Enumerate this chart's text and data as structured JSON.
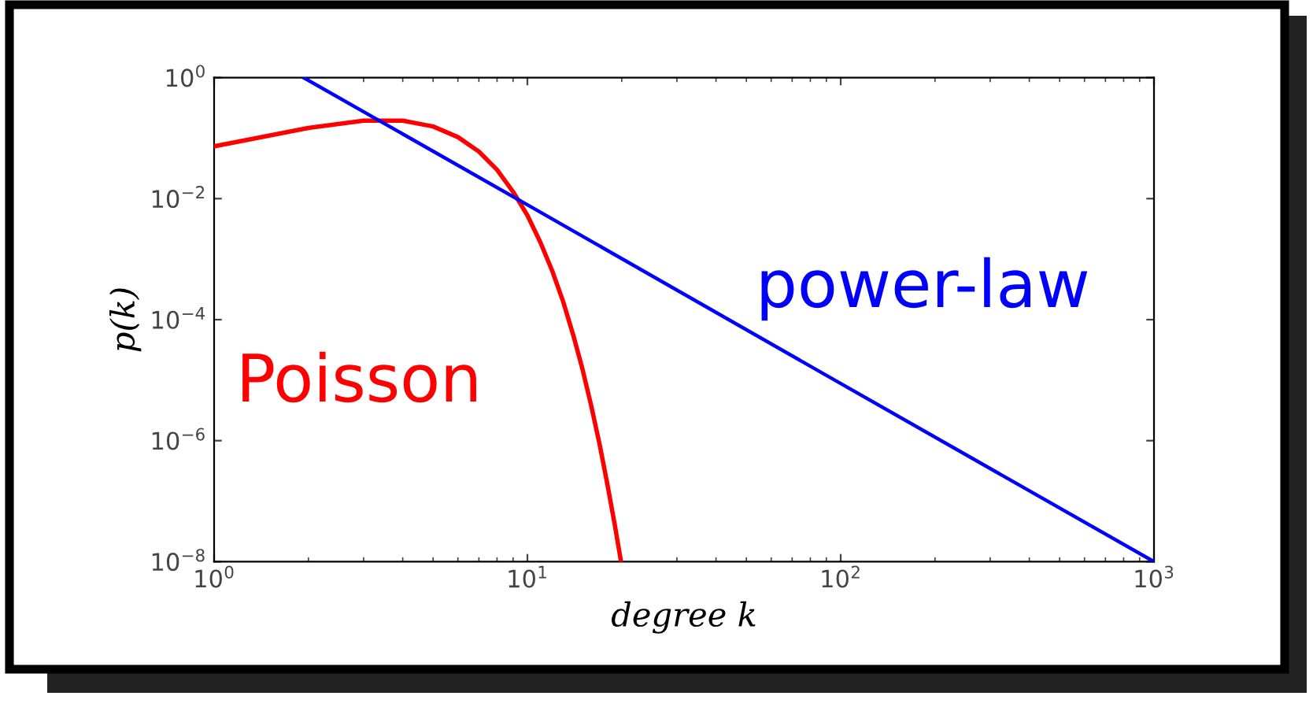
{
  "chart_data": {
    "type": "line",
    "xlabel": "degree k",
    "ylabel": "p(k)",
    "log": "xy",
    "xlim": [
      1,
      1000
    ],
    "ylim": [
      1e-08,
      1
    ],
    "xticks": [
      {
        "value": 1,
        "label": "10$^{0}$"
      },
      {
        "value": 10,
        "label": "10$^{1}$"
      },
      {
        "value": 100,
        "label": "10$^{2}$"
      },
      {
        "value": 1000,
        "label": "10$^{3}$"
      }
    ],
    "yticks": [
      {
        "value": 1e-08,
        "label": "10$^{−8}$"
      },
      {
        "value": 1e-06,
        "label": "10$^{−6}$"
      },
      {
        "value": 0.0001,
        "label": "10$^{−4}$"
      },
      {
        "value": 0.01,
        "label": "10$^{−2}$"
      },
      {
        "value": 1,
        "label": "10$^{0}$"
      }
    ],
    "grid": false,
    "legend": false,
    "marker": "none",
    "line_style": "solid",
    "series": [
      {
        "name": "Poisson",
        "color": "#ff0000",
        "x": [
          1,
          2,
          3,
          4,
          5,
          6,
          7,
          8,
          9,
          10,
          11,
          12,
          13,
          14,
          15,
          16,
          17,
          18,
          19,
          19.9
        ],
        "values": [
          0.073,
          0.147,
          0.195,
          0.195,
          0.156,
          0.104,
          0.06,
          0.03,
          0.013,
          0.0053,
          0.0019,
          0.00064,
          0.0002,
          5.6e-05,
          1.5e-05,
          3.7e-06,
          8.7e-07,
          1.9e-07,
          4.1e-08,
          1e-08
        ]
      },
      {
        "name": "power-law",
        "color": "#0000ff",
        "x": [
          1.93,
          10,
          100,
          1000
        ],
        "values": [
          1,
          0.0079,
          8.8e-06,
          1e-08
        ]
      }
    ]
  }
}
